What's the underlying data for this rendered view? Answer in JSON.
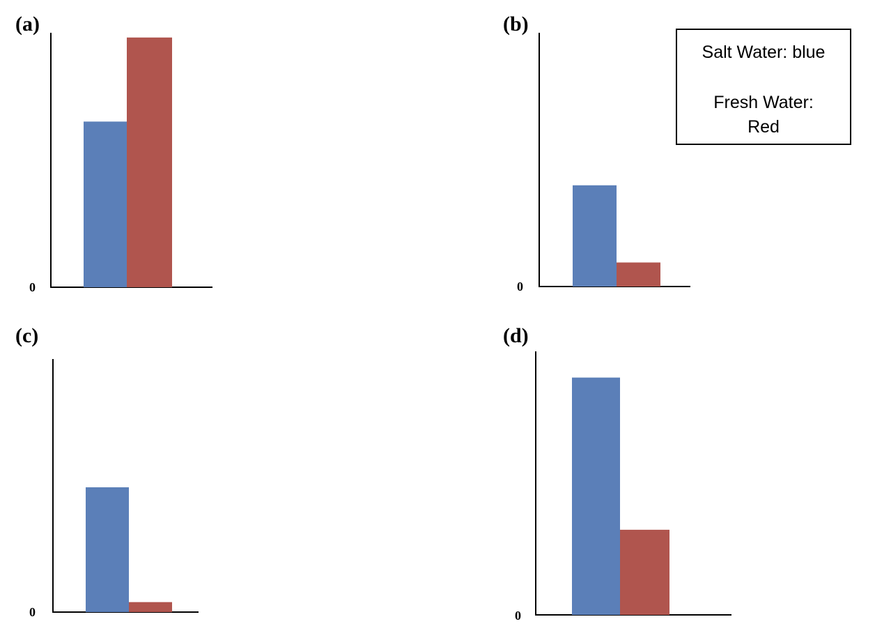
{
  "colors": {
    "salt": "#5b7fb8",
    "fresh": "#b0554e"
  },
  "legend": {
    "salt_label": "Salt Water: blue",
    "fresh_label_line1": "Fresh Water:",
    "fresh_label_line2": "Red"
  },
  "chart_data": [
    {
      "type": "bar",
      "panel": "(a)",
      "title": "(a)",
      "categories": [
        ""
      ],
      "series": [
        {
          "name": "Salt Water",
          "color": "blue",
          "values": [
            0.66
          ]
        },
        {
          "name": "Fresh Water",
          "color": "red",
          "values": [
            0.995
          ]
        }
      ],
      "ylim": [
        0,
        1
      ],
      "yticks": [
        "0"
      ],
      "xlabel": "",
      "ylabel": ""
    },
    {
      "type": "bar",
      "panel": "(b)",
      "title": "(b)",
      "categories": [
        ""
      ],
      "series": [
        {
          "name": "Salt Water",
          "color": "blue",
          "values": [
            0.4
          ]
        },
        {
          "name": "Fresh Water",
          "color": "red",
          "values": [
            0.095
          ]
        }
      ],
      "ylim": [
        0,
        1
      ],
      "yticks": [
        "0"
      ],
      "xlabel": "",
      "ylabel": ""
    },
    {
      "type": "bar",
      "panel": "(c)",
      "title": "(c)",
      "categories": [
        ""
      ],
      "series": [
        {
          "name": "Salt Water",
          "color": "blue",
          "values": [
            0.5
          ]
        },
        {
          "name": "Fresh Water",
          "color": "red",
          "values": [
            0.04
          ]
        }
      ],
      "ylim": [
        0,
        1
      ],
      "yticks": [
        "0"
      ],
      "xlabel": "",
      "ylabel": ""
    },
    {
      "type": "bar",
      "panel": "(d)",
      "title": "(d)",
      "categories": [
        ""
      ],
      "series": [
        {
          "name": "Salt Water",
          "color": "blue",
          "values": [
            0.92
          ]
        },
        {
          "name": "Fresh Water",
          "color": "red",
          "values": [
            0.33
          ]
        }
      ],
      "ylim": [
        0,
        1
      ],
      "yticks": [
        "0"
      ],
      "xlabel": "",
      "ylabel": ""
    }
  ]
}
